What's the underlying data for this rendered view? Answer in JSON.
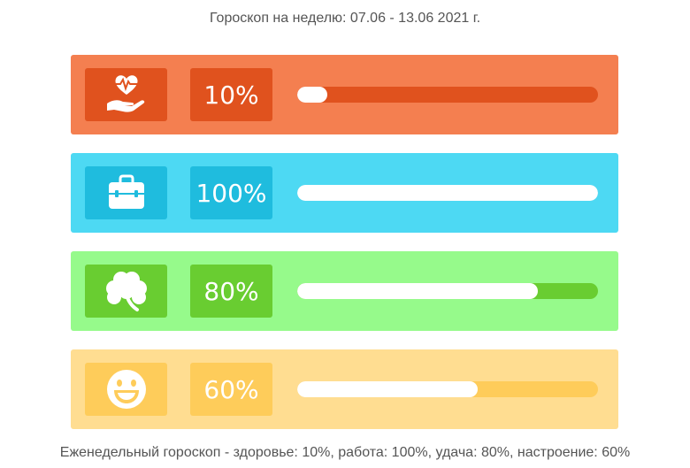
{
  "header": {
    "title": "Гороскоп на неделю: 07.06 - 13.06 2021 г."
  },
  "cards": [
    {
      "key": "health",
      "icon": "heart-hand-icon",
      "percent_label": "10%",
      "level": 0.1,
      "colors": {
        "card": "#f47f50",
        "box": "#e0521e",
        "track": "#e0521e"
      }
    },
    {
      "key": "work",
      "icon": "briefcase-icon",
      "percent_label": "100%",
      "level": 1.0,
      "colors": {
        "card": "#4dd9f3",
        "box": "#1fbcde",
        "track": "#1fbcde"
      }
    },
    {
      "key": "luck",
      "icon": "clover-icon",
      "percent_label": "80%",
      "level": 0.8,
      "colors": {
        "card": "#96fa8b",
        "box": "#69cd31",
        "track": "#69cd31"
      }
    },
    {
      "key": "mood",
      "icon": "smiley-icon",
      "percent_label": "60%",
      "level": 0.6,
      "colors": {
        "card": "#ffdd91",
        "box": "#fecc5a",
        "track": "#fecc5a"
      }
    }
  ],
  "footer": {
    "summary": "Еженедельный гороскоп - здоровье: 10%, работа: 100%, удача: 80%, настроение: 60%"
  }
}
